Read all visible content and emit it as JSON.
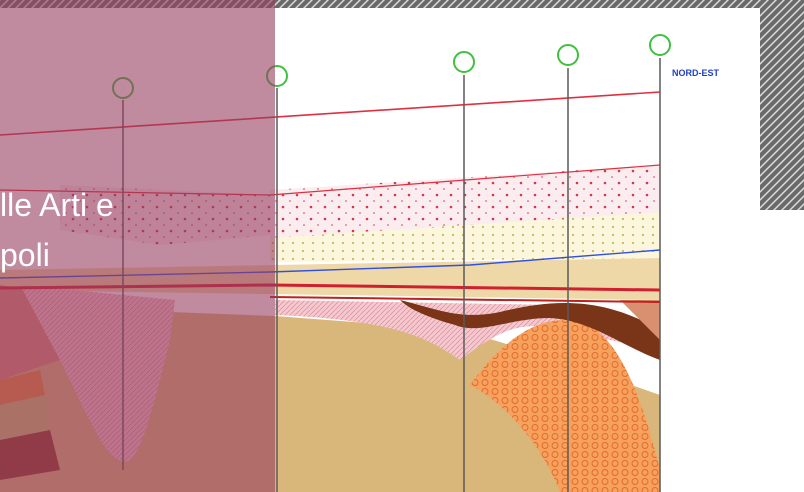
{
  "slide_text": {
    "lines": [
      "lle Arti e",
      "poli"
    ]
  },
  "figure": {
    "labels": [
      "NORD-EST"
    ]
  }
}
